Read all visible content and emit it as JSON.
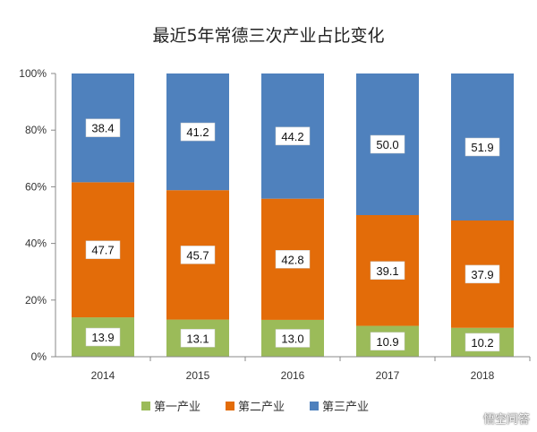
{
  "chart_data": {
    "type": "bar",
    "stacked": true,
    "title": "最近5年常德三次产业占比变化",
    "categories": [
      "2014",
      "2015",
      "2016",
      "2017",
      "2018"
    ],
    "series": [
      {
        "name": "第一产业",
        "color": "#9bbb59",
        "values": [
          13.9,
          13.1,
          13.0,
          10.9,
          10.2
        ]
      },
      {
        "name": "第二产业",
        "color": "#e36c09",
        "values": [
          47.7,
          45.7,
          42.8,
          39.1,
          37.9
        ]
      },
      {
        "name": "第三产业",
        "color": "#4f81bd",
        "values": [
          38.4,
          41.2,
          44.2,
          50.0,
          51.9
        ]
      }
    ],
    "ylim": [
      0,
      100
    ],
    "yticks": [
      "0%",
      "20%",
      "40%",
      "60%",
      "80%",
      "100%"
    ],
    "legend_position": "bottom",
    "grid": false
  },
  "watermark": "悟空问答"
}
